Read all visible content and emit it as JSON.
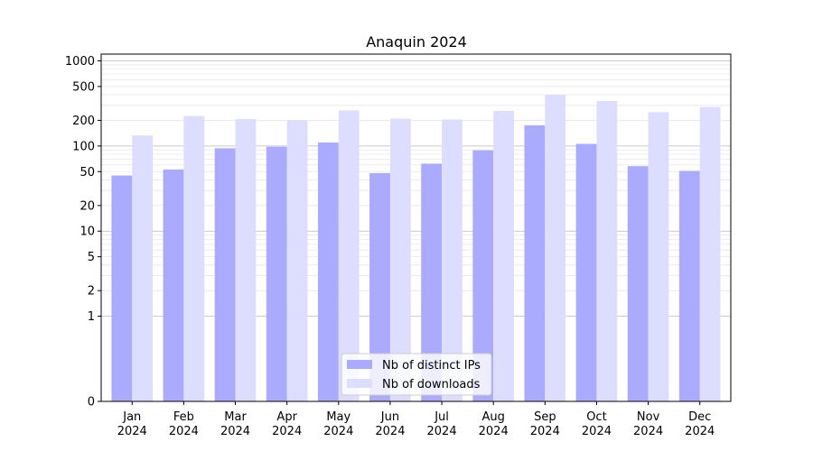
{
  "chart_data": {
    "type": "bar",
    "title": "Anaquin 2024",
    "xlabel": "",
    "ylabel": "",
    "yscale": "symlog",
    "ylim": [
      0,
      1200
    ],
    "categories": [
      [
        "Jan",
        "2024"
      ],
      [
        "Feb",
        "2024"
      ],
      [
        "Mar",
        "2024"
      ],
      [
        "Apr",
        "2024"
      ],
      [
        "May",
        "2024"
      ],
      [
        "Jun",
        "2024"
      ],
      [
        "Jul",
        "2024"
      ],
      [
        "Aug",
        "2024"
      ],
      [
        "Sep",
        "2024"
      ],
      [
        "Oct",
        "2024"
      ],
      [
        "Nov",
        "2024"
      ],
      [
        "Dec",
        "2024"
      ]
    ],
    "y_ticks": [
      0,
      1,
      2,
      5,
      10,
      20,
      50,
      100,
      200,
      500,
      1000
    ],
    "y_tick_labels": [
      "0",
      "1",
      "2",
      "5",
      "10",
      "20",
      "50",
      "100",
      "200",
      "500",
      "1000"
    ],
    "series": [
      {
        "name": "Nb of distinct IPs",
        "color": "#aaaaff",
        "values": [
          45,
          53,
          94,
          98,
          110,
          48,
          62,
          89,
          175,
          106,
          58,
          51
        ]
      },
      {
        "name": "Nb of downloads",
        "color": "#ddddff",
        "values": [
          133,
          225,
          207,
          200,
          262,
          210,
          205,
          258,
          400,
          337,
          250,
          287
        ]
      }
    ],
    "grid": true,
    "legend_position": "bottom-center"
  }
}
